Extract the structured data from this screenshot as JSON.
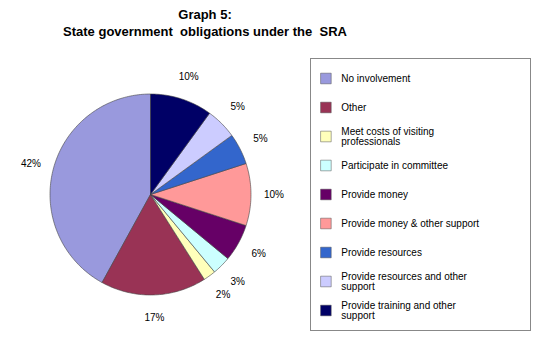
{
  "chart_data": {
    "type": "pie",
    "title": "Graph 5:",
    "subtitle": "State government  obligations under the  SRA",
    "categories": [
      "No involvement",
      "Other",
      "Meet costs of visiting\nprofessionals",
      "Participate in committee",
      "Provide money",
      "Provide money & other support",
      "Provide resources",
      "Provide resources and other\nsupport",
      "Provide training and other\nsupport"
    ],
    "values": [
      42,
      17,
      2,
      3,
      6,
      10,
      5,
      5,
      10
    ],
    "value_labels": [
      "42%",
      "17%",
      "2%",
      "3%",
      "6%",
      "10%",
      "5%",
      "5%",
      "10%"
    ],
    "colors": [
      "#9999DD",
      "#993355",
      "#FFFFBB",
      "#CCFFFF",
      "#660066",
      "#FF9999",
      "#3366CC",
      "#CCCCFF",
      "#000066"
    ],
    "data_labels": true,
    "legend": "right"
  }
}
